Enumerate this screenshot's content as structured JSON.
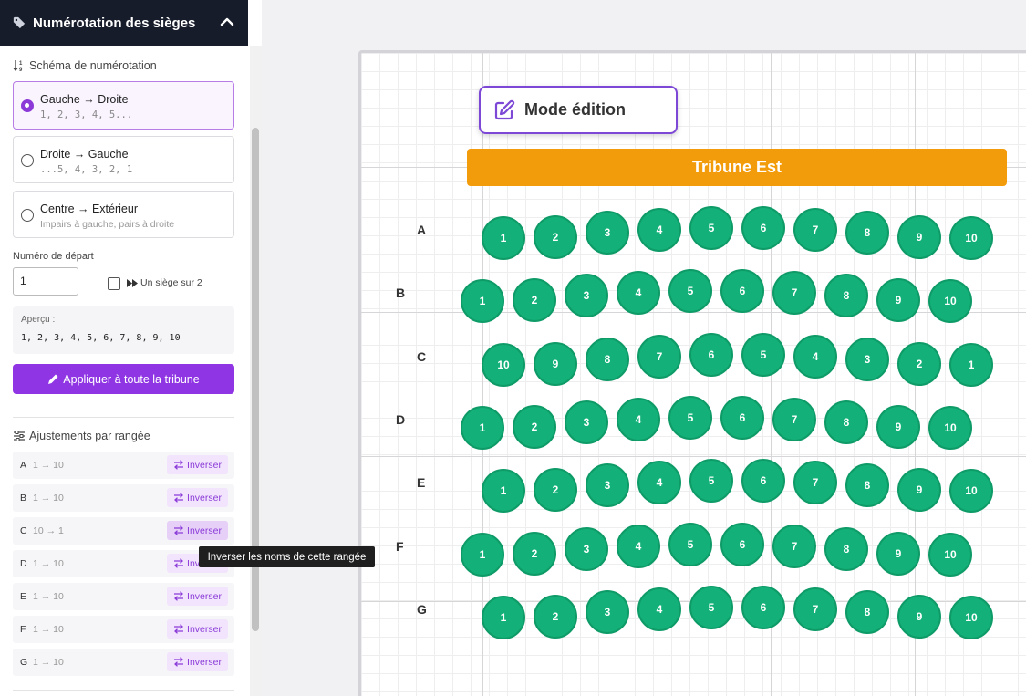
{
  "sidebar": {
    "header_title": "Numérotation des sièges",
    "scheme_label": "Schéma de numérotation",
    "options": [
      {
        "title": "Gauche → Droite",
        "sub": "1, 2, 3, 4, 5...",
        "selected": true
      },
      {
        "title": "Droite → Gauche",
        "sub": "...5, 4, 3, 2, 1",
        "selected": false
      },
      {
        "title": "Centre → Extérieur",
        "sub": "Impairs à gauche, pairs à droite",
        "selected": false
      }
    ],
    "start_label": "Numéro de départ",
    "start_value": "1",
    "skip_label": "Un siège sur 2",
    "skip_checked": false,
    "preview_label": "Aperçu :",
    "preview_value": "1, 2, 3, 4, 5, 6, 7, 8, 9, 10",
    "apply_label": "Appliquer à toute la tribune",
    "adjust_label": "Ajustements par rangée",
    "rows": [
      {
        "letter": "A",
        "range": "1 → 10",
        "action": "Inverser"
      },
      {
        "letter": "B",
        "range": "1 → 10",
        "action": "Inverser"
      },
      {
        "letter": "C",
        "range": "10 → 1",
        "action": "Inverser"
      },
      {
        "letter": "D",
        "range": "1 → 10",
        "action": "Inverser"
      },
      {
        "letter": "E",
        "range": "1 → 10",
        "action": "Inverser"
      },
      {
        "letter": "F",
        "range": "1 → 10",
        "action": "Inverser"
      },
      {
        "letter": "G",
        "range": "1 → 10",
        "action": "Inverser"
      }
    ],
    "tooltip": "Inverser les noms de cette rangée"
  },
  "canvas": {
    "mode_label": "Mode édition",
    "tribune_label": "Tribune Est",
    "colors": {
      "seat": "#13b179",
      "tribune": "#f39c0b",
      "accent": "#8f35e3"
    },
    "rows": [
      {
        "letter": "A",
        "seats": [
          "1",
          "2",
          "3",
          "4",
          "5",
          "6",
          "7",
          "8",
          "9",
          "10"
        ]
      },
      {
        "letter": "B",
        "seats": [
          "1",
          "2",
          "3",
          "4",
          "5",
          "6",
          "7",
          "8",
          "9",
          "10"
        ]
      },
      {
        "letter": "C",
        "seats": [
          "10",
          "9",
          "8",
          "7",
          "6",
          "5",
          "4",
          "3",
          "2",
          "1"
        ]
      },
      {
        "letter": "D",
        "seats": [
          "1",
          "2",
          "3",
          "4",
          "5",
          "6",
          "7",
          "8",
          "9",
          "10"
        ]
      },
      {
        "letter": "E",
        "seats": [
          "1",
          "2",
          "3",
          "4",
          "5",
          "6",
          "7",
          "8",
          "9",
          "10"
        ]
      },
      {
        "letter": "F",
        "seats": [
          "1",
          "2",
          "3",
          "4",
          "5",
          "6",
          "7",
          "8",
          "9",
          "10"
        ]
      },
      {
        "letter": "G",
        "seats": [
          "1",
          "2",
          "3",
          "4",
          "5",
          "6",
          "7",
          "8",
          "9",
          "10"
        ]
      }
    ]
  }
}
